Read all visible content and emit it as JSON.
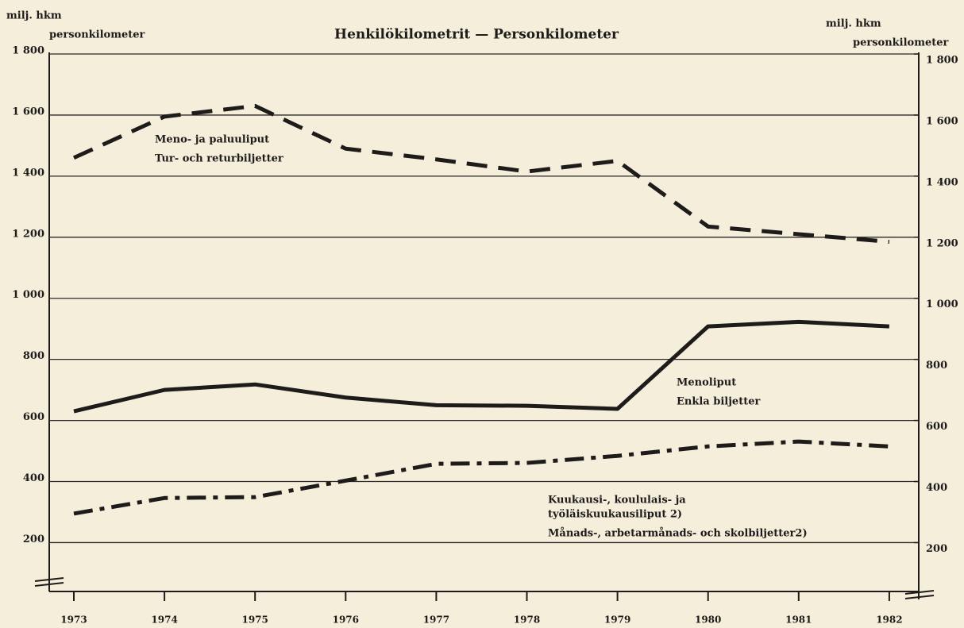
{
  "chart_data": {
    "type": "line",
    "title": "Henkilökilometrit — Personkilometer",
    "y_label": [
      "milj. hkm",
      "personkilometer"
    ],
    "y2_label": [
      "milj. hkm",
      "personkilometer"
    ],
    "categories": [
      "1973",
      "1974",
      "1975",
      "1976",
      "1977",
      "1978",
      "1979",
      "1980",
      "1981",
      "1982"
    ],
    "series": [
      {
        "name": [
          "Meno- ja paluuliput",
          "Tur- och returbiljetter"
        ],
        "color": "#1e1c1a",
        "dash": "dashed",
        "values": [
          1460,
          1595,
          1630,
          1490,
          1455,
          1415,
          1450,
          1235,
          1210,
          1185
        ]
      },
      {
        "name": [
          "Menoliput",
          "Enkla biljetter"
        ],
        "color": "#1e1c1a",
        "dash": "solid",
        "values": [
          630,
          700,
          718,
          675,
          650,
          648,
          638,
          908,
          923,
          908
        ]
      },
      {
        "name": [
          "Kuukausi-, koululais- ja",
          "työläiskuukausiliput 2)",
          "Månads-, arbetarmånads- och skolbiljetter2)"
        ],
        "color": "#1e1c1a",
        "dash": "dashdot",
        "values": [
          295,
          346,
          349,
          403,
          458,
          461,
          484,
          515,
          531,
          515
        ]
      }
    ],
    "ylim": [
      40,
      1800
    ],
    "yticks": [
      200,
      400,
      600,
      800,
      {
        "value": 1000,
        "label": "1 000"
      },
      {
        "value": 1200,
        "label": "1 200"
      },
      {
        "value": 1400,
        "label": "1 400"
      },
      {
        "value": 1600,
        "label": "1 600"
      },
      {
        "value": 1800,
        "label": "1 800"
      }
    ],
    "y2lim": [
      40,
      1800
    ],
    "y2ticks": [
      200,
      400,
      600,
      800,
      {
        "value": 1000,
        "label": "1 000"
      },
      {
        "value": 1200,
        "label": "1 200"
      },
      {
        "value": 1400,
        "label": "1 400"
      },
      {
        "value": 1600,
        "label": "1 600"
      },
      {
        "value": 1800,
        "label": "1 800"
      }
    ],
    "grid": true
  }
}
